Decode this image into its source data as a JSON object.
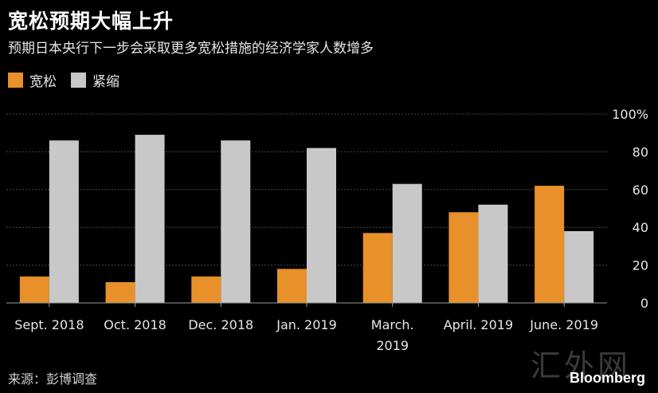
{
  "header": {
    "title": "宽松预期大幅上升",
    "subtitle": "预期日本央行下一步会采取更多宽松措施的经济学家人数增多"
  },
  "footer": {
    "source": "来源：彭博调查",
    "watermark": "汇外网",
    "brand": "Bloomberg"
  },
  "colors": {
    "background": "#000000",
    "easing": "#e8902a",
    "tightening": "#c8c8c8",
    "grid": "#4a4a4a",
    "axis": "#9a9a9a",
    "text": "#e6e6e6"
  },
  "chart_data": {
    "type": "bar",
    "categories": [
      "Sept. 2018",
      "Oct. 2018",
      "Dec. 2018",
      "Jan. 2019",
      "March. 2019",
      "April. 2019",
      "June. 2019"
    ],
    "series": [
      {
        "name": "宽松",
        "values": [
          14,
          11,
          14,
          18,
          37,
          48,
          62
        ]
      },
      {
        "name": "紧缩",
        "values": [
          86,
          89,
          86,
          82,
          63,
          52,
          38
        ]
      }
    ],
    "y_ticks": [
      "0",
      "20",
      "40",
      "60",
      "80",
      "100%"
    ],
    "ylim": [
      0,
      100
    ],
    "grid": true,
    "legend": "top-left",
    "y_axis_side": "right"
  }
}
